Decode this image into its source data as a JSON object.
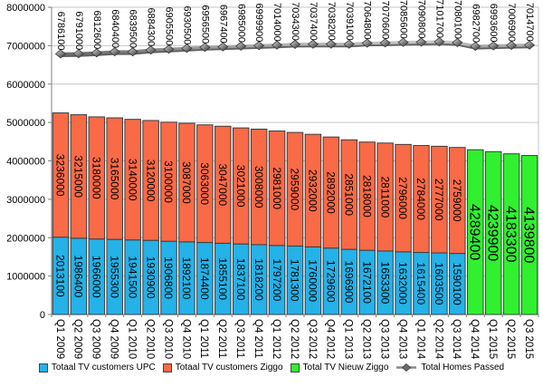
{
  "chart_data": {
    "type": "bar",
    "stacked": true,
    "grid": true,
    "legend_position": "bottom",
    "ylim": [
      0,
      8000000
    ],
    "ytick_step": 1000000,
    "ytick_labels": [
      "0",
      "1000000",
      "2000000",
      "3000000",
      "4000000",
      "5000000",
      "6000000",
      "7000000",
      "8000000"
    ],
    "categories": [
      "Q1 2009",
      "Q2 2009",
      "Q3 2009",
      "Q4 2009",
      "Q1 2010",
      "Q2 2010",
      "Q3 2010",
      "Q4 2010",
      "Q1 2011",
      "Q2 2011",
      "Q3 2011",
      "Q4 2011",
      "Q1 2012",
      "Q2 2012",
      "Q3 2012",
      "Q4 2012",
      "Q1 2013",
      "Q2 2013",
      "Q3 2013",
      "Q4 2013",
      "Q1 2014",
      "Q2 2014",
      "Q3 2014",
      "Q4 2014",
      "Q1 2015",
      "Q2 2015",
      "Q3 2015"
    ],
    "series": [
      {
        "name": "Totaal TV customers UPC",
        "color": "#24B2E8",
        "values": [
          2013100,
          1986400,
          1966000,
          1955300,
          1941500,
          1930900,
          1906800,
          1892100,
          1874400,
          1855100,
          1837100,
          1818200,
          1797200,
          1781300,
          1760000,
          1729600,
          1696900,
          1672100,
          1653300,
          1632000,
          1615400,
          1603500,
          1590100,
          null,
          null,
          null,
          null
        ]
      },
      {
        "name": "Totaal TV customers Ziggo",
        "color": "#F96A47",
        "values": [
          3236000,
          3215000,
          3180000,
          3165000,
          3140000,
          3120000,
          3100000,
          3087000,
          3063000,
          3047000,
          3021000,
          3008000,
          2981000,
          2959000,
          2932000,
          2892000,
          2851000,
          2818000,
          2811000,
          2796000,
          2784000,
          2777000,
          2759000,
          null,
          null,
          null,
          null
        ]
      },
      {
        "name": "Total TV Nieuw Ziggo",
        "color": "#30F030",
        "values": [
          null,
          null,
          null,
          null,
          null,
          null,
          null,
          null,
          null,
          null,
          null,
          null,
          null,
          null,
          null,
          null,
          null,
          null,
          null,
          null,
          null,
          null,
          null,
          4289400,
          4239900,
          4183300,
          4139800
        ]
      }
    ],
    "line_series": {
      "name": "Total Homes Passed",
      "color": "#8a8a8a",
      "values": [
        6786100,
        6791000,
        6812600,
        6840400,
        6839500,
        6884300,
        6905500,
        6930500,
        6956500,
        6967400,
        6985000,
        6999900,
        7014000,
        7034300,
        7037400,
        7038200,
        7039100,
        7064800,
        7070600,
        7085600,
        7090800,
        7101700,
        7080100,
        6982700,
        6993600,
        7006900,
        7014700
      ]
    }
  }
}
